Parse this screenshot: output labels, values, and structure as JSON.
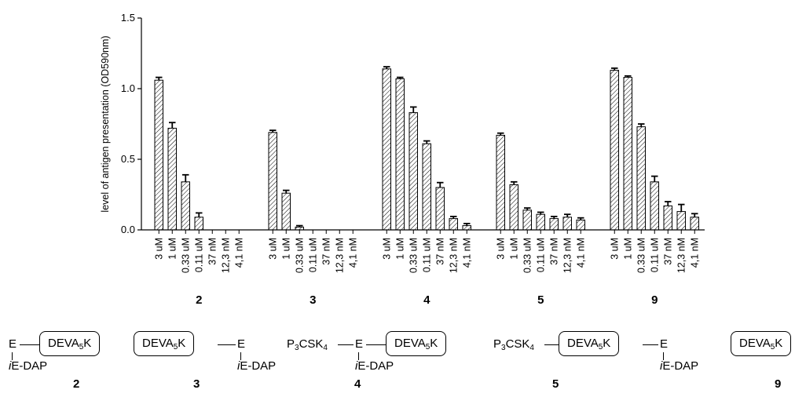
{
  "chart_data": {
    "type": "bar",
    "ylabel": "level of antigen presentation (OD590nm)",
    "ylim": [
      0,
      1.5
    ],
    "yticks": [
      "0.0",
      "0.5",
      "1.0",
      "1.5"
    ],
    "bar_pattern": "diagonal-hatch",
    "groups": [
      {
        "name": "2",
        "categories": [
          "3 uM",
          "1 uM",
          "0.33 uM",
          "0.11 uM",
          "37 nM",
          "12,3 nM",
          "4,1 nM"
        ],
        "values": [
          1.06,
          0.72,
          0.34,
          0.09,
          0,
          0,
          0
        ],
        "errors": [
          0.02,
          0.04,
          0.05,
          0.03,
          0,
          0,
          0
        ]
      },
      {
        "name": "3",
        "categories": [
          "3 uM",
          "1 uM",
          "0.33 uM",
          "0.11 uM",
          "37 nM",
          "12,3 nM",
          "4,1 nM"
        ],
        "values": [
          0.69,
          0.26,
          0.02,
          0,
          0,
          0,
          0
        ],
        "errors": [
          0.015,
          0.02,
          0.01,
          0,
          0,
          0,
          0
        ]
      },
      {
        "name": "4",
        "categories": [
          "3 uM",
          "1 uM",
          "0.33 uM",
          "0.11 uM",
          "37 nM",
          "12,3 nM",
          "4,1 nM"
        ],
        "values": [
          1.14,
          1.07,
          0.83,
          0.61,
          0.3,
          0.08,
          0.03
        ],
        "errors": [
          0.015,
          0.01,
          0.04,
          0.02,
          0.035,
          0.015,
          0.015
        ]
      },
      {
        "name": "5",
        "categories": [
          "3 uM",
          "1 uM",
          "0.33 uM",
          "0.11 uM",
          "37 nM",
          "12,3 nM",
          "4,1 nM"
        ],
        "values": [
          0.67,
          0.32,
          0.14,
          0.11,
          0.08,
          0.09,
          0.07
        ],
        "errors": [
          0.015,
          0.02,
          0.015,
          0.015,
          0.015,
          0.02,
          0.015
        ]
      },
      {
        "name": "9",
        "categories": [
          "3 uM",
          "1 uM",
          "0.33 uM",
          "0.11 uM",
          "37 nM",
          "12,3 nM",
          "4,1 nM"
        ],
        "values": [
          1.13,
          1.08,
          0.73,
          0.34,
          0.17,
          0.13,
          0.09
        ],
        "errors": [
          0.015,
          0.01,
          0.02,
          0.04,
          0.03,
          0.05,
          0.025
        ]
      }
    ]
  },
  "structures": {
    "s2": {
      "e": "E",
      "peptide": "DEVA",
      "peptide_sub": "5",
      "peptide_end": "K",
      "dap_i": "i",
      "dap": "E-DAP",
      "number": "2"
    },
    "s3": {
      "peptide": "DEVA",
      "peptide_sub": "5",
      "peptide_end": "K",
      "e": "E",
      "dap_i": "i",
      "dap": "E-DAP",
      "number": "3"
    },
    "s4": {
      "lipo": "P",
      "lipo_sub1": "3",
      "lipo_mid": "CSK",
      "lipo_sub2": "4",
      "e": "E",
      "peptide": "DEVA",
      "peptide_sub": "5",
      "peptide_end": "K",
      "dap_i": "i",
      "dap": "E-DAP",
      "number": "4"
    },
    "s5": {
      "lipo": "P",
      "lipo_sub1": "3",
      "lipo_mid": "CSK",
      "lipo_sub2": "4",
      "peptide": "DEVA",
      "peptide_sub": "5",
      "peptide_end": "K",
      "e": "E",
      "dap_i": "i",
      "dap": "E-DAP",
      "number": "5"
    },
    "s9": {
      "peptide": "DEVA",
      "peptide_sub": "5",
      "peptide_end": "K",
      "number": "9"
    }
  }
}
